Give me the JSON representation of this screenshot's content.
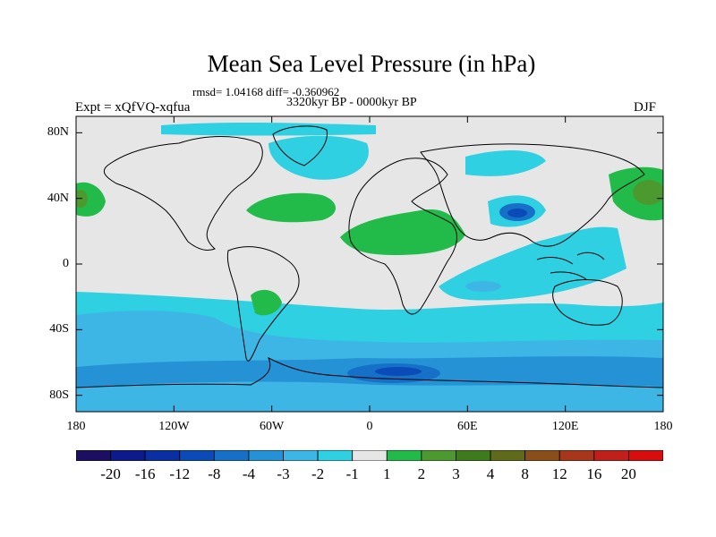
{
  "title": "Mean Sea Level Pressure (in hPa)",
  "stats": "rmsd= 1.04168 diff= -0.360962",
  "period": "3320kyr BP - 0000kyr BP",
  "experiment": "Expt = xQfVQ-xqfua",
  "season": "DJF",
  "map": {
    "lat_ticks": [
      {
        "value": 80,
        "label": "80N"
      },
      {
        "value": 40,
        "label": "40N"
      },
      {
        "value": 0,
        "label": "0"
      },
      {
        "value": -40,
        "label": "40S"
      },
      {
        "value": -80,
        "label": "80S"
      }
    ],
    "lon_ticks": [
      {
        "value": -180,
        "label": "180"
      },
      {
        "value": -120,
        "label": "120W"
      },
      {
        "value": -60,
        "label": "60W"
      },
      {
        "value": 0,
        "label": "0"
      },
      {
        "value": 60,
        "label": "60E"
      },
      {
        "value": 120,
        "label": "120E"
      },
      {
        "value": 180,
        "label": "180"
      }
    ],
    "lat_range": [
      -90,
      90
    ],
    "lon_range": [
      -180,
      180
    ],
    "background_color": "#e6e6e6",
    "coastline_color": "#000000"
  },
  "colorbar": {
    "colors": [
      "#1c0f63",
      "#0c1a8c",
      "#0a2fa3",
      "#0b4bb8",
      "#1670c8",
      "#2592d6",
      "#3db6e6",
      "#2ed0e2",
      "#e6e6e6",
      "#22bb4a",
      "#4c9a2f",
      "#3f7a1c",
      "#5f6b1a",
      "#8a4e1a",
      "#a8361a",
      "#c01f1a",
      "#d80d0d"
    ],
    "labels": [
      "-20",
      "-16",
      "-12",
      "-8",
      "-4",
      "-3",
      "-2",
      "-1",
      "1",
      "2",
      "3",
      "4",
      "8",
      "12",
      "16",
      "20"
    ]
  }
}
